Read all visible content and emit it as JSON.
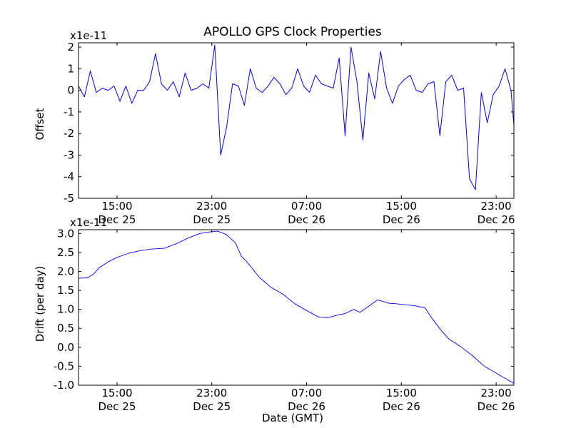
{
  "figure": {
    "title": "APOLLO GPS Clock Properties",
    "xlabel": "Date (GMT)"
  },
  "chart_data": [
    {
      "type": "line",
      "title": "APOLLO GPS Clock Properties",
      "ylabel": "Offset",
      "offset_text": "x1e-11",
      "xlabel": "",
      "xlim": [
        "Dec 25 11:45",
        "Dec 27 00:30"
      ],
      "ylim": [
        -5,
        2.2
      ],
      "yticks": [
        -5,
        -4,
        -3,
        -2,
        -1,
        0,
        1,
        2
      ],
      "ytick_labels": [
        "-5",
        "-4",
        "-3",
        "-2",
        "-1",
        "0",
        "1",
        "2"
      ],
      "xticks": [
        "Dec 25 15:00",
        "Dec 25 23:00",
        "Dec 26 07:00",
        "Dec 26 15:00",
        "Dec 26 23:00"
      ],
      "xtick_labels": [
        [
          "15:00",
          "Dec 25"
        ],
        [
          "23:00",
          "Dec 25"
        ],
        [
          "07:00",
          "Dec 26"
        ],
        [
          "15:00",
          "Dec 26"
        ],
        [
          "23:00",
          "Dec 26"
        ]
      ],
      "grid": false,
      "color": "#0000ff",
      "series": [
        {
          "x": [
            "Dec 25 11:45",
            "Dec 25 12:15",
            "Dec 25 12:45",
            "Dec 25 13:15",
            "Dec 25 13:45",
            "Dec 25 14:15",
            "Dec 25 14:45",
            "Dec 25 15:15",
            "Dec 25 15:45",
            "Dec 25 16:15",
            "Dec 25 16:45",
            "Dec 25 17:15",
            "Dec 25 17:45",
            "Dec 25 18:15",
            "Dec 25 18:45",
            "Dec 25 19:15",
            "Dec 25 19:45",
            "Dec 25 20:15",
            "Dec 25 20:45",
            "Dec 25 21:15",
            "Dec 25 21:45",
            "Dec 25 22:15",
            "Dec 25 22:45",
            "Dec 25 23:15",
            "Dec 25 23:45",
            "Dec 26 00:15",
            "Dec 26 00:45",
            "Dec 26 01:15",
            "Dec 26 01:45",
            "Dec 26 02:15",
            "Dec 26 02:45",
            "Dec 26 03:15",
            "Dec 26 03:45",
            "Dec 26 04:15",
            "Dec 26 04:45",
            "Dec 26 05:15",
            "Dec 26 05:45",
            "Dec 26 06:15",
            "Dec 26 06:45",
            "Dec 26 07:15",
            "Dec 26 07:45",
            "Dec 26 08:15",
            "Dec 26 08:45",
            "Dec 26 09:15",
            "Dec 26 09:45",
            "Dec 26 10:15",
            "Dec 26 10:45",
            "Dec 26 11:15",
            "Dec 26 11:45",
            "Dec 26 12:15",
            "Dec 26 12:45",
            "Dec 26 13:15",
            "Dec 26 13:45",
            "Dec 26 14:15",
            "Dec 26 14:45",
            "Dec 26 15:15",
            "Dec 26 15:45",
            "Dec 26 16:15",
            "Dec 26 16:45",
            "Dec 26 17:15",
            "Dec 26 17:45",
            "Dec 26 18:15",
            "Dec 26 18:45",
            "Dec 26 19:15",
            "Dec 26 19:45",
            "Dec 26 20:15",
            "Dec 26 20:45",
            "Dec 26 21:15",
            "Dec 26 21:45",
            "Dec 26 22:15",
            "Dec 26 22:45",
            "Dec 26 23:15",
            "Dec 26 23:45",
            "Dec 27 00:15",
            "Dec 27 00:30"
          ],
          "y": [
            0.2,
            -0.3,
            0.9,
            -0.1,
            0.1,
            0.0,
            0.2,
            -0.5,
            0.2,
            -0.6,
            0.0,
            0.0,
            0.4,
            1.7,
            0.3,
            0.0,
            0.4,
            -0.3,
            0.8,
            0.0,
            0.1,
            0.3,
            0.1,
            2.1,
            -3.0,
            -1.7,
            0.3,
            0.2,
            -0.7,
            1.0,
            0.1,
            -0.1,
            0.2,
            0.6,
            0.3,
            -0.2,
            0.1,
            1.0,
            0.2,
            -0.1,
            0.7,
            0.3,
            0.2,
            0.1,
            1.5,
            -2.1,
            2.0,
            0.4,
            -2.3,
            0.8,
            -0.4,
            1.8,
            0.1,
            -0.6,
            0.2,
            0.5,
            0.7,
            0.0,
            -0.1,
            0.3,
            0.4,
            -2.1,
            0.4,
            0.7,
            0.0,
            0.1,
            -4.1,
            -4.6,
            -0.1,
            -1.5,
            -0.2,
            0.2,
            1.0,
            0.0,
            -1.6
          ]
        }
      ]
    },
    {
      "type": "line",
      "title": "",
      "ylabel": "Drift (per day)",
      "offset_text": "x1e-11",
      "xlabel": "Date (GMT)",
      "xlim": [
        "Dec 25 11:45",
        "Dec 27 00:30"
      ],
      "ylim": [
        -1.0,
        3.1
      ],
      "yticks": [
        -1.0,
        -0.5,
        0.0,
        0.5,
        1.0,
        1.5,
        2.0,
        2.5,
        3.0
      ],
      "ytick_labels": [
        "-1.0",
        "-0.5",
        "0.0",
        "0.5",
        "1.0",
        "1.5",
        "2.0",
        "2.5",
        "3.0"
      ],
      "xticks": [
        "Dec 25 15:00",
        "Dec 25 23:00",
        "Dec 26 07:00",
        "Dec 26 15:00",
        "Dec 26 23:00"
      ],
      "xtick_labels": [
        [
          "15:00",
          "Dec 25"
        ],
        [
          "23:00",
          "Dec 25"
        ],
        [
          "07:00",
          "Dec 26"
        ],
        [
          "15:00",
          "Dec 26"
        ],
        [
          "23:00",
          "Dec 26"
        ]
      ],
      "grid": false,
      "color": "#0000ff",
      "series": [
        {
          "x": [
            "Dec 25 11:45",
            "Dec 25 12:30",
            "Dec 25 13:00",
            "Dec 25 13:30",
            "Dec 25 14:15",
            "Dec 25 15:00",
            "Dec 25 16:00",
            "Dec 25 17:00",
            "Dec 25 18:00",
            "Dec 25 19:00",
            "Dec 25 20:00",
            "Dec 25 21:00",
            "Dec 25 22:00",
            "Dec 25 23:00",
            "Dec 25 23:30",
            "Dec 26 00:15",
            "Dec 26 01:00",
            "Dec 26 01:30",
            "Dec 26 02:00",
            "Dec 26 03:00",
            "Dec 26 04:00",
            "Dec 26 05:00",
            "Dec 26 06:00",
            "Dec 26 07:00",
            "Dec 26 08:00",
            "Dec 26 08:45",
            "Dec 26 09:30",
            "Dec 26 10:15",
            "Dec 26 11:00",
            "Dec 26 11:30",
            "Dec 26 12:00",
            "Dec 26 13:00",
            "Dec 26 14:00",
            "Dec 26 14:30",
            "Dec 26 15:00",
            "Dec 26 16:00",
            "Dec 26 17:00",
            "Dec 26 17:30",
            "Dec 26 18:15",
            "Dec 26 19:00",
            "Dec 26 20:00",
            "Dec 26 21:00",
            "Dec 26 22:00",
            "Dec 26 23:00",
            "Dec 27 00:00",
            "Dec 27 00:30"
          ],
          "y": [
            1.82,
            1.83,
            1.92,
            2.1,
            2.25,
            2.37,
            2.48,
            2.55,
            2.59,
            2.61,
            2.73,
            2.88,
            3.0,
            3.05,
            3.06,
            2.97,
            2.75,
            2.4,
            2.24,
            1.85,
            1.58,
            1.4,
            1.15,
            0.97,
            0.8,
            0.78,
            0.84,
            0.89,
            1.0,
            0.92,
            1.03,
            1.25,
            1.16,
            1.15,
            1.13,
            1.1,
            1.04,
            0.8,
            0.49,
            0.22,
            0.02,
            -0.22,
            -0.5,
            -0.68,
            -0.86,
            -0.95
          ]
        }
      ]
    }
  ]
}
